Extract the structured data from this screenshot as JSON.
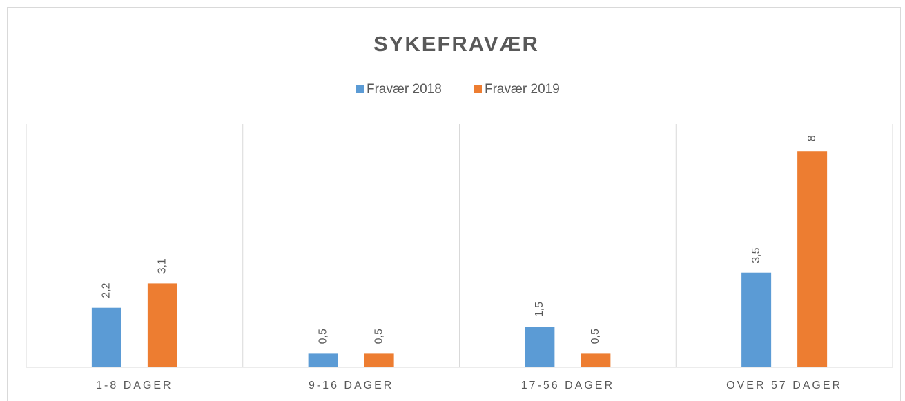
{
  "chart_data": {
    "type": "bar",
    "title": "SYKEFRAVÆR",
    "categories": [
      "1-8 DAGER",
      "9-16 DAGER",
      "17-56 DAGER",
      "OVER 57 DAGER"
    ],
    "series": [
      {
        "name": "Fravær 2018",
        "color": "#5b9bd5",
        "values": [
          2.2,
          0.5,
          1.5,
          3.5
        ],
        "value_labels": [
          "2,2",
          "0,5",
          "1,5",
          "3,5"
        ]
      },
      {
        "name": "Fravær 2019",
        "color": "#ed7d31",
        "values": [
          3.1,
          0.5,
          0.5,
          8
        ],
        "value_labels": [
          "3,1",
          "0,5",
          "0,5",
          "8"
        ]
      }
    ],
    "ylim": [
      0,
      9
    ],
    "legend": "top"
  }
}
